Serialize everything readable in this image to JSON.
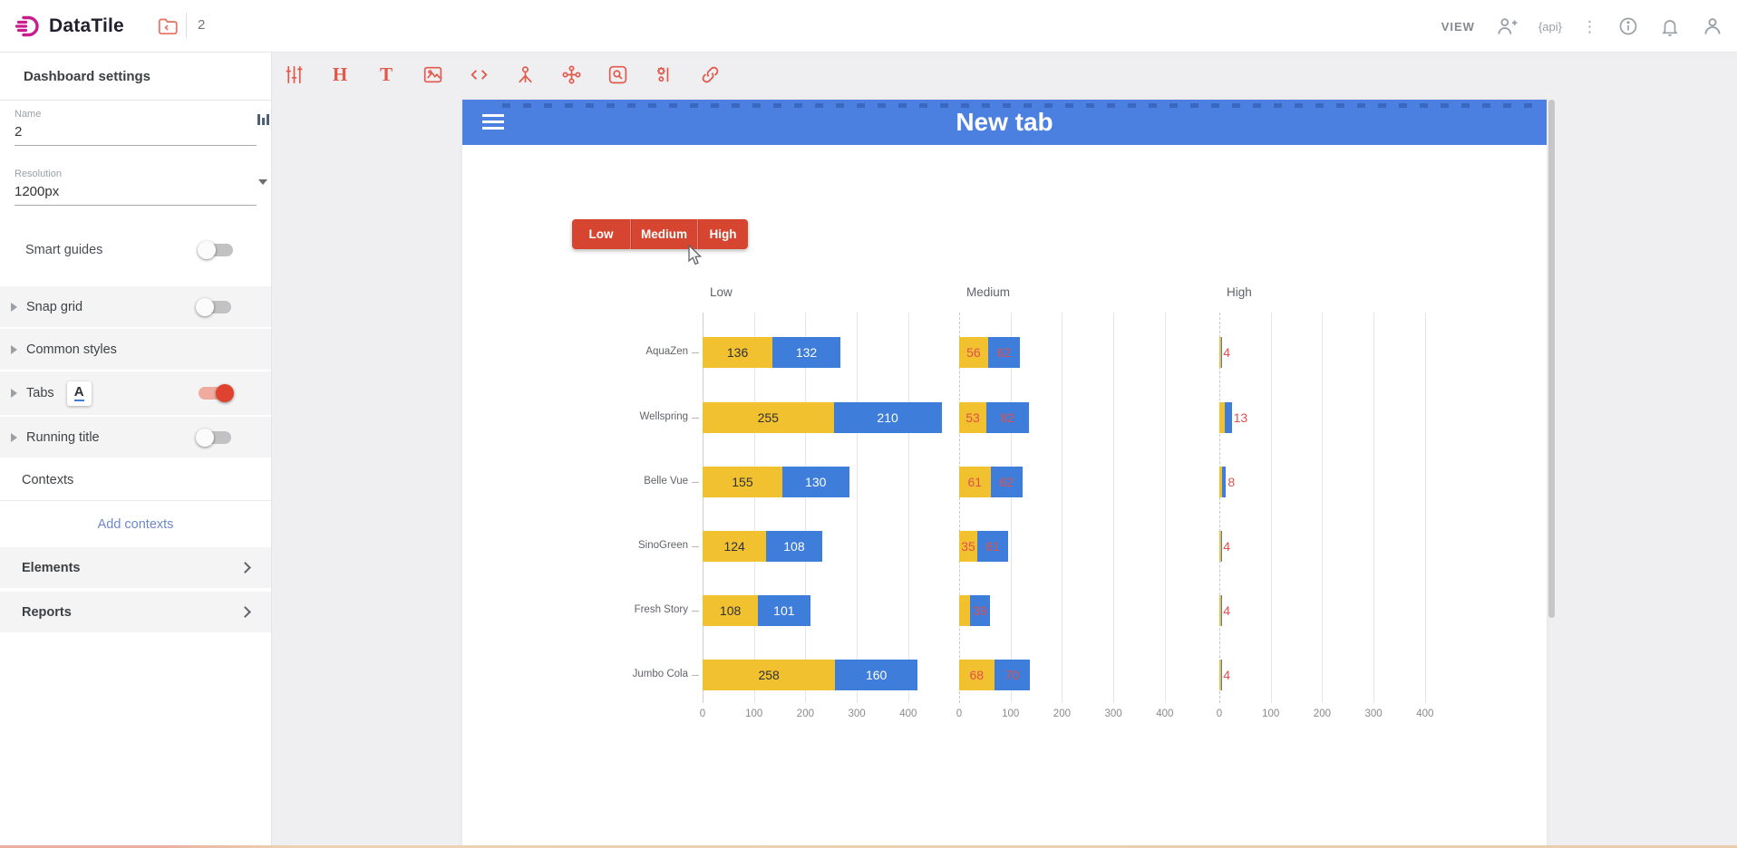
{
  "topbar": {
    "logo_text": "DataTile",
    "doc_number": "2",
    "view_label": "VIEW",
    "api_label": "{api}",
    "kebab_glyph": "⋮"
  },
  "sidebar": {
    "title": "Dashboard settings",
    "name_field": {
      "label": "Name",
      "value": "2"
    },
    "resolution_field": {
      "label": "Resolution",
      "value": "1200px"
    },
    "smart_guides_label": "Smart guides",
    "rows": {
      "snap_grid": "Snap grid",
      "common_styles": "Common styles",
      "tabs": "Tabs",
      "tabs_icon_letter": "A",
      "running_title": "Running title",
      "contexts": "Contexts",
      "add_contexts": "Add contexts",
      "elements": "Elements",
      "reports": "Reports"
    }
  },
  "toolbar": {
    "heading_glyph": "H",
    "text_glyph": "T"
  },
  "canvas": {
    "tab_title": "New tab",
    "buttons": [
      "Low",
      "Medium",
      "High"
    ]
  },
  "colors": {
    "brand_magenta": "#c91d8c",
    "toolbar_red": "#e2584a",
    "header_blue": "#4b80e1",
    "button_red": "#d5452f",
    "bar_yellow": "#f2c130",
    "bar_blue": "#3f7dda",
    "value_red": "#e0504c",
    "link_blue": "#6d88cf",
    "toggle_on_red": "#df4330"
  },
  "chart_data": {
    "type": "bar",
    "orientation": "horizontal",
    "stacked": true,
    "grid": true,
    "categories": [
      "AquaZen",
      "Wellspring",
      "Belle Vue",
      "SinoGreen",
      "Fresh Story",
      "Jumbo Cola"
    ],
    "x_ticks": [
      0,
      100,
      200,
      300,
      400
    ],
    "x_range": [
      0,
      400
    ],
    "panels": [
      {
        "title": "Low",
        "series": [
          {
            "name": "yellow",
            "color": "#f2c130",
            "label_color": "#2f3136",
            "values": [
              136,
              255,
              155,
              124,
              108,
              258
            ]
          },
          {
            "name": "blue",
            "color": "#3f7dda",
            "label_color": "#ffffff",
            "values": [
              132,
              210,
              130,
              108,
              101,
              160
            ]
          }
        ]
      },
      {
        "title": "Medium",
        "label_color": "#e0504c",
        "series": [
          {
            "name": "yellow",
            "color": "#f2c130",
            "values": [
              56,
              53,
              61,
              35,
              21,
              68
            ]
          },
          {
            "name": "blue",
            "color": "#3f7dda",
            "values": [
              62,
              82,
              62,
              61,
              39,
              70
            ]
          }
        ]
      },
      {
        "title": "High",
        "label_color": "#e0504c",
        "series": [
          {
            "name": "yellow",
            "color": "#f2c130",
            "values": [
              4,
              11,
              5,
              4,
              4,
              4
            ],
            "labels": [
              "4",
              "",
              "",
              "4",
              "4",
              "4"
            ]
          },
          {
            "name": "blue",
            "color": "#3f7dda",
            "values": [
              2,
              13,
              8,
              2,
              2,
              2
            ],
            "labels": [
              "",
              "13",
              "8",
              "",
              "",
              ""
            ]
          }
        ]
      }
    ]
  }
}
